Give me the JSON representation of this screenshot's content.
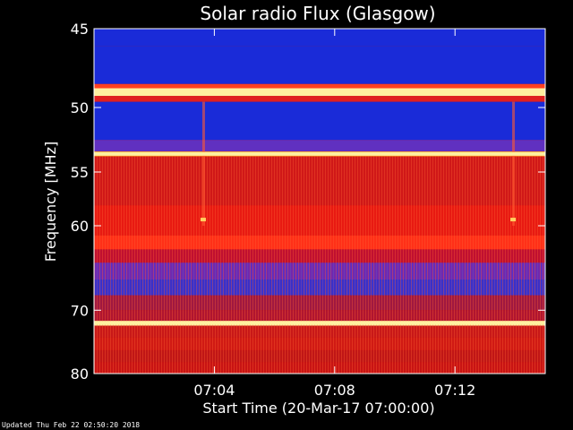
{
  "chart_data": {
    "type": "heatmap",
    "title": "Solar radio Flux (Glasgow)",
    "ylabel": "Frequency [MHz]",
    "xlabel": "Start Time (20-Mar-17 07:00:00)",
    "y_ticks": [
      45,
      50,
      55,
      60,
      70,
      80
    ],
    "x_ticks": [
      "07:04",
      "07:08",
      "07:12"
    ],
    "x_tick_minutes": [
      4,
      8,
      12
    ],
    "x_range_minutes": [
      0,
      15
    ],
    "y_range_mhz": [
      45,
      80
    ],
    "y_scale": "reciprocal",
    "colors": {
      "background": "#000000",
      "low": "#1a2bd8",
      "mid": "#c01010",
      "high": "#ff2a10",
      "peak": "#fff0a0"
    },
    "bright_lanes_mhz": [
      48.8,
      53.5,
      71.8
    ]
  },
  "footer": "Updated Thu Feb 22 02:50:20 2018"
}
